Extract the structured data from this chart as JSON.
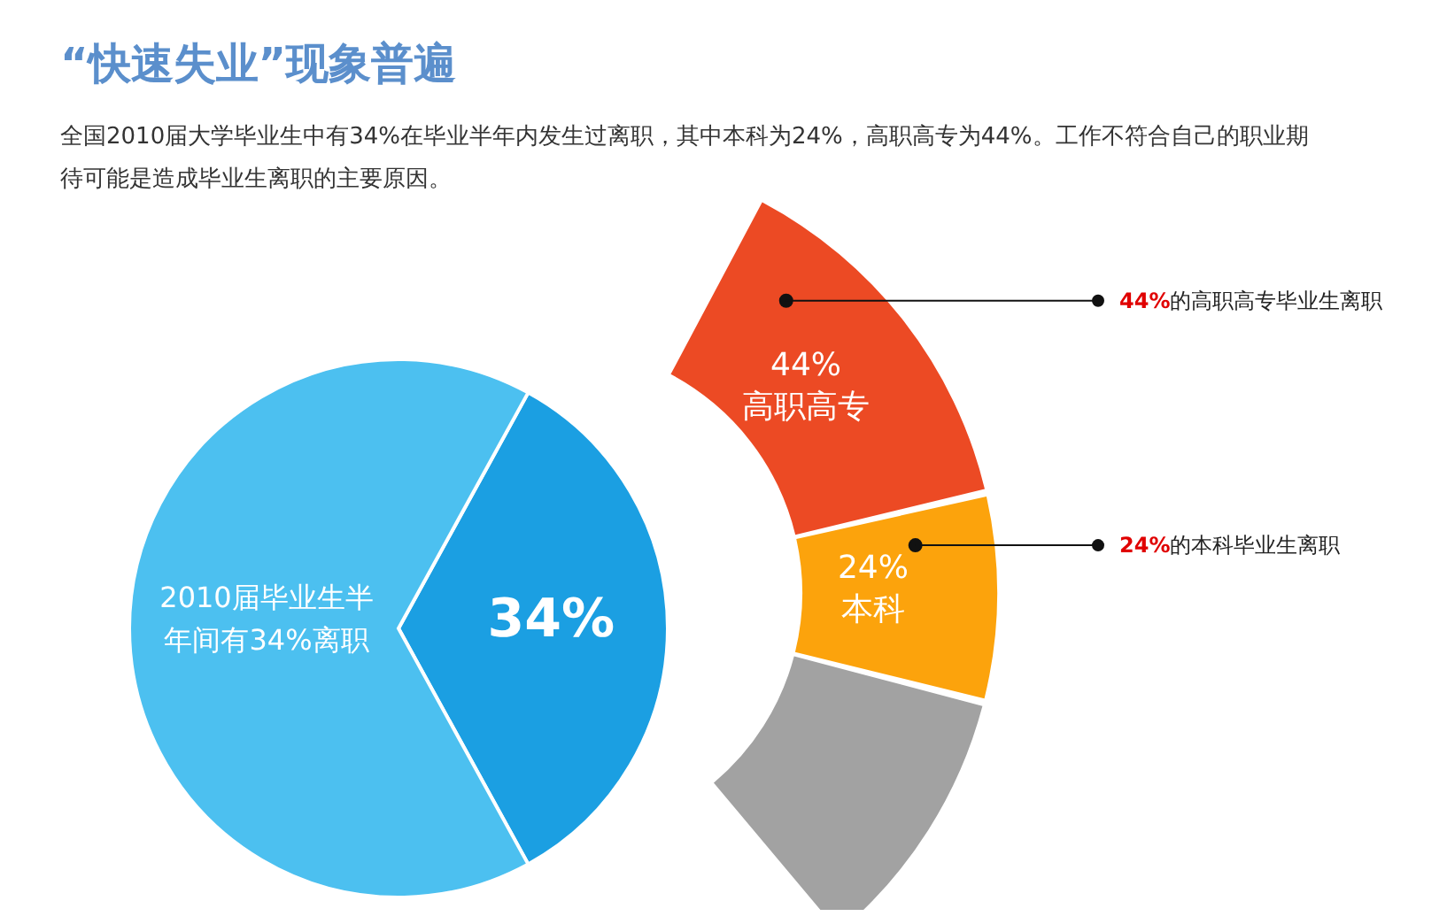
{
  "chart_data": [
    {
      "type": "pie",
      "title": "“快速失业”现象普遍",
      "subtitle": "全国2010届大学毕业生中有34%在毕业半年内发生过离职，其中本科为24%，高职高专为44%。工作不符合自己的职业期待可能是造成毕业生离职的主要原因。",
      "categories": [
        null,
        null
      ],
      "values": [
        34,
        66
      ],
      "colors": [
        "#1b9fe2",
        "#4cc0f0"
      ],
      "value_labels": [
        "34%",
        null
      ],
      "annotations": [
        "2010届毕业生半年间有34%离职"
      ]
    },
    {
      "type": "donut",
      "categories": [
        "高职高专",
        "本科",
        null
      ],
      "values": [
        44,
        24,
        32
      ],
      "colors": [
        "#ec4a24",
        "#fca30c",
        "#a2a2a2"
      ],
      "value_labels": [
        "44%",
        "24%",
        null
      ],
      "annotations": [
        "44%的高职高专毕业生离职",
        "24%的本科毕业生离职"
      ]
    }
  ]
}
